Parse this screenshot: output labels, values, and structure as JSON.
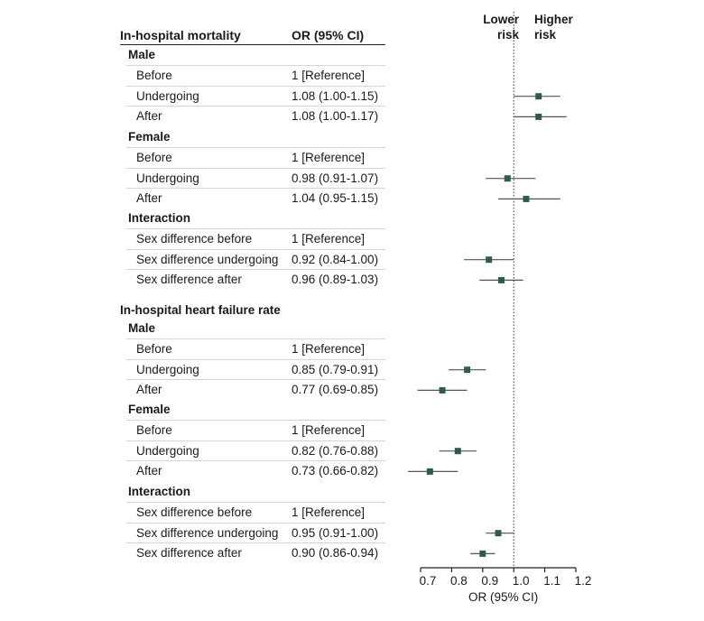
{
  "headers": {
    "mortality": "In-hospital mortality",
    "or_ci": "OR (95% CI)",
    "heart_failure": "In-hospital heart failure rate",
    "lower_risk": [
      "Lower",
      "risk"
    ],
    "higher_risk": [
      "Higher",
      "risk"
    ]
  },
  "sections": [
    {
      "title": "In-hospital mortality",
      "groups": [
        {
          "name": "Male",
          "rows": [
            {
              "label": "Before",
              "or_text": "1 [Reference]"
            },
            {
              "label": "Undergoing",
              "or_text": "1.08 (1.00-1.15)"
            },
            {
              "label": "After",
              "or_text": "1.08 (1.00-1.17)"
            }
          ]
        },
        {
          "name": "Female",
          "rows": [
            {
              "label": "Before",
              "or_text": "1 [Reference]"
            },
            {
              "label": "Undergoing",
              "or_text": "0.98 (0.91-1.07)"
            },
            {
              "label": "After",
              "or_text": "1.04 (0.95-1.15)"
            }
          ]
        },
        {
          "name": "Interaction",
          "rows": [
            {
              "label": "Sex difference before",
              "or_text": "1 [Reference]"
            },
            {
              "label": "Sex difference undergoing",
              "or_text": "0.92 (0.84-1.00)"
            },
            {
              "label": "Sex difference after",
              "or_text": "0.96 (0.89-1.03)"
            }
          ]
        }
      ]
    },
    {
      "title": "In-hospital heart failure rate",
      "groups": [
        {
          "name": "Male",
          "rows": [
            {
              "label": "Before",
              "or_text": "1 [Reference]"
            },
            {
              "label": "Undergoing",
              "or_text": "0.85 (0.79-0.91)"
            },
            {
              "label": "After",
              "or_text": "0.77 (0.69-0.85)"
            }
          ]
        },
        {
          "name": "Female",
          "rows": [
            {
              "label": "Before",
              "or_text": "1 [Reference]"
            },
            {
              "label": "Undergoing",
              "or_text": "0.82 (0.76-0.88)"
            },
            {
              "label": "After",
              "or_text": "0.73 (0.66-0.82)"
            }
          ]
        },
        {
          "name": "Interaction",
          "rows": [
            {
              "label": "Sex difference before",
              "or_text": "1 [Reference]"
            },
            {
              "label": "Sex difference undergoing",
              "or_text": "0.95 (0.91-1.00)"
            },
            {
              "label": "Sex difference after",
              "or_text": "0.90 (0.86-0.94)"
            }
          ]
        }
      ]
    }
  ],
  "chart_data": {
    "type": "scatter",
    "xlabel": "OR (95% CI)",
    "xlim": [
      0.7,
      1.2
    ],
    "xticks": [
      "0.7",
      "0.8",
      "0.9",
      "1.0",
      "1.1",
      "1.2"
    ],
    "xtick_values": [
      0.7,
      0.8,
      0.9,
      1.0,
      1.1,
      1.2
    ],
    "reference_line": 1.0,
    "marker_color": "#2e5a52",
    "line_color": "#555555",
    "points": [
      {
        "section": "In-hospital mortality",
        "group": "Male",
        "row": "Undergoing",
        "or": 1.08,
        "lo": 1.0,
        "hi": 1.15
      },
      {
        "section": "In-hospital mortality",
        "group": "Male",
        "row": "After",
        "or": 1.08,
        "lo": 1.0,
        "hi": 1.17
      },
      {
        "section": "In-hospital mortality",
        "group": "Female",
        "row": "Undergoing",
        "or": 0.98,
        "lo": 0.91,
        "hi": 1.07
      },
      {
        "section": "In-hospital mortality",
        "group": "Female",
        "row": "After",
        "or": 1.04,
        "lo": 0.95,
        "hi": 1.15
      },
      {
        "section": "In-hospital mortality",
        "group": "Interaction",
        "row": "Sex difference undergoing",
        "or": 0.92,
        "lo": 0.84,
        "hi": 1.0
      },
      {
        "section": "In-hospital mortality",
        "group": "Interaction",
        "row": "Sex difference after",
        "or": 0.96,
        "lo": 0.89,
        "hi": 1.03
      },
      {
        "section": "In-hospital heart failure rate",
        "group": "Male",
        "row": "Undergoing",
        "or": 0.85,
        "lo": 0.79,
        "hi": 0.91
      },
      {
        "section": "In-hospital heart failure rate",
        "group": "Male",
        "row": "After",
        "or": 0.77,
        "lo": 0.69,
        "hi": 0.85
      },
      {
        "section": "In-hospital heart failure rate",
        "group": "Female",
        "row": "Undergoing",
        "or": 0.82,
        "lo": 0.76,
        "hi": 0.88
      },
      {
        "section": "In-hospital heart failure rate",
        "group": "Female",
        "row": "After",
        "or": 0.73,
        "lo": 0.66,
        "hi": 0.82
      },
      {
        "section": "In-hospital heart failure rate",
        "group": "Interaction",
        "row": "Sex difference undergoing",
        "or": 0.95,
        "lo": 0.91,
        "hi": 1.0
      },
      {
        "section": "In-hospital heart failure rate",
        "group": "Interaction",
        "row": "Sex difference after",
        "or": 0.9,
        "lo": 0.86,
        "hi": 0.94
      }
    ]
  }
}
